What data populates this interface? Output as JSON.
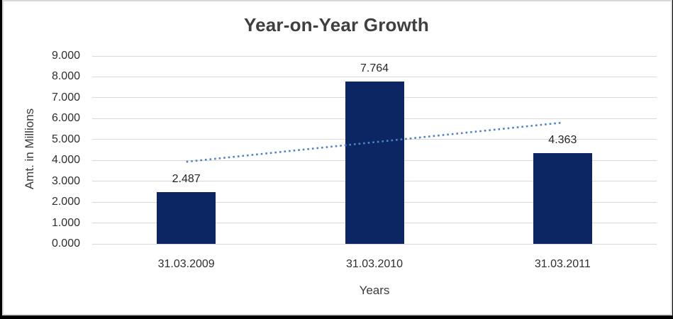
{
  "chart_data": {
    "type": "bar",
    "title": "Year-on-Year Growth",
    "xlabel": "Years",
    "ylabel": "Amt. in Millions",
    "categories": [
      "31.03.2009",
      "31.03.2010",
      "31.03.2011"
    ],
    "values": [
      2.487,
      7.764,
      4.363
    ],
    "data_labels": [
      "2.487",
      "7.764",
      "4.363"
    ],
    "ylim": [
      0,
      9
    ],
    "yticks": [
      0,
      1,
      2,
      3,
      4,
      5,
      6,
      7,
      8,
      9
    ],
    "ytick_labels": [
      "0.000",
      "1.000",
      "2.000",
      "3.000",
      "4.000",
      "5.000",
      "6.000",
      "7.000",
      "8.000",
      "9.000"
    ],
    "grid": true,
    "legend": "none",
    "trendline": {
      "type": "linear",
      "style": "dotted",
      "start_value": 3.933,
      "end_value": 5.809
    },
    "colors": {
      "bar": "#0b2663",
      "trendline": "#4f83c3",
      "gridline": "#d9d9d9",
      "chart_border": "#d8d8d8",
      "chart_background": "#ffffff",
      "outer_background": "#000000",
      "title_text": "#3f3f3f",
      "axis_text": "#2e2e2e"
    }
  }
}
